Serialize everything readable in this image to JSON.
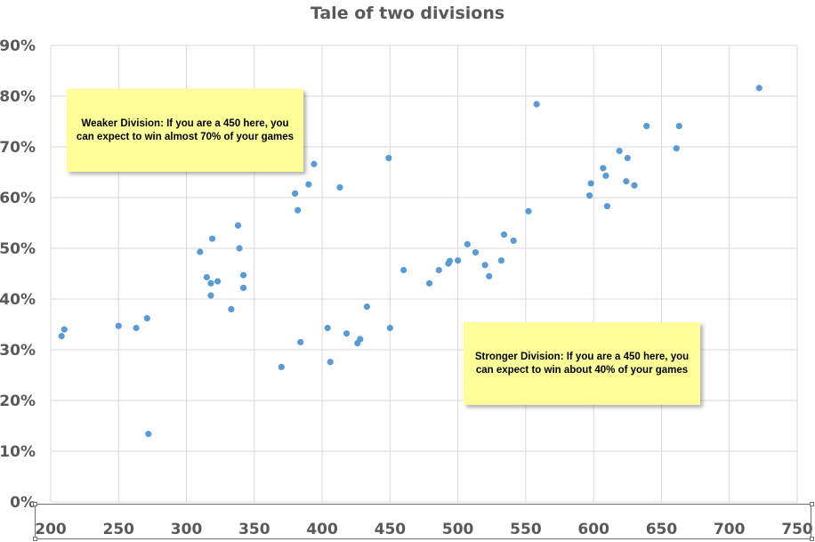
{
  "chart_data": {
    "type": "scatter",
    "title": "Tale of two divisions",
    "xlabel": "",
    "ylabel": "",
    "xlim": [
      200,
      750
    ],
    "ylim": [
      0,
      0.9
    ],
    "x_ticks": [
      "200",
      "250",
      "300",
      "350",
      "400",
      "450",
      "500",
      "550",
      "600",
      "650",
      "700",
      "750"
    ],
    "y_ticks": [
      "0%",
      "10%",
      "20%",
      "30%",
      "40%",
      "50%",
      "60%",
      "70%",
      "80%",
      "90%"
    ],
    "grid": true,
    "point_color": "#5b9bd5",
    "series": [
      {
        "points": [
          [
            208,
            0.327
          ],
          [
            210,
            0.34
          ],
          [
            250,
            0.347
          ],
          [
            263,
            0.343
          ],
          [
            271,
            0.362
          ],
          [
            272,
            0.134
          ],
          [
            310,
            0.493
          ],
          [
            315,
            0.443
          ],
          [
            318,
            0.431
          ],
          [
            318,
            0.407
          ],
          [
            319,
            0.519
          ],
          [
            323,
            0.435
          ],
          [
            333,
            0.38
          ],
          [
            338,
            0.545
          ],
          [
            339,
            0.5
          ],
          [
            342,
            0.447
          ],
          [
            342,
            0.422
          ],
          [
            370,
            0.266
          ],
          [
            380,
            0.608
          ],
          [
            382,
            0.575
          ],
          [
            384,
            0.315
          ],
          [
            390,
            0.626
          ],
          [
            394,
            0.666
          ],
          [
            404,
            0.343
          ],
          [
            406,
            0.276
          ],
          [
            413,
            0.62
          ],
          [
            418,
            0.332
          ],
          [
            426,
            0.313
          ],
          [
            428,
            0.321
          ],
          [
            433,
            0.385
          ],
          [
            449,
            0.678
          ],
          [
            450,
            0.343
          ],
          [
            460,
            0.457
          ],
          [
            479,
            0.431
          ],
          [
            486,
            0.457
          ],
          [
            493,
            0.47
          ],
          [
            494,
            0.475
          ],
          [
            500,
            0.476
          ],
          [
            507,
            0.508
          ],
          [
            513,
            0.492
          ],
          [
            520,
            0.467
          ],
          [
            523,
            0.445
          ],
          [
            532,
            0.476
          ],
          [
            534,
            0.527
          ],
          [
            541,
            0.515
          ],
          [
            552,
            0.573
          ],
          [
            558,
            0.784
          ],
          [
            597,
            0.604
          ],
          [
            598,
            0.628
          ],
          [
            607,
            0.658
          ],
          [
            609,
            0.643
          ],
          [
            610,
            0.583
          ],
          [
            619,
            0.692
          ],
          [
            624,
            0.632
          ],
          [
            625,
            0.678
          ],
          [
            630,
            0.624
          ],
          [
            639,
            0.741
          ],
          [
            661,
            0.697
          ],
          [
            663,
            0.741
          ],
          [
            722,
            0.816
          ]
        ]
      }
    ],
    "annotations": [
      "Weaker Division: If you are a 450 here, you can expect to win almost 70% of your games",
      "Stronger Division: If you are a 450 here, you can expect to win about 40% of your games"
    ]
  }
}
